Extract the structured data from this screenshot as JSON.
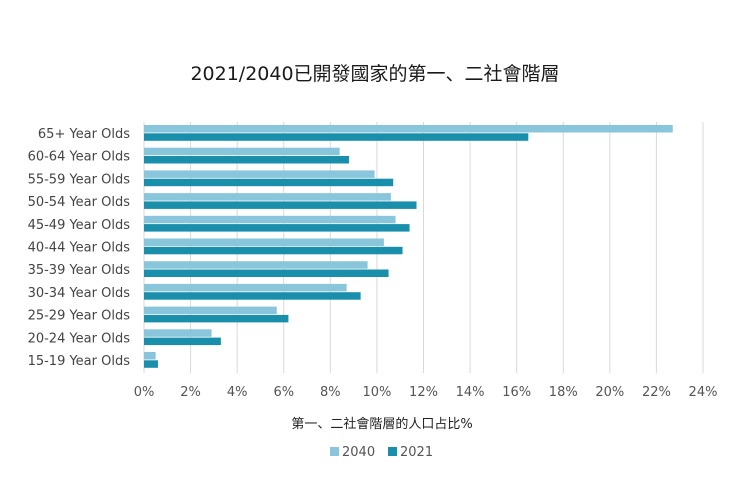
{
  "chart_data": {
    "type": "bar",
    "orientation": "horizontal",
    "title": "2021/2040已開發國家的第一、二社會階層",
    "xlabel": "第一、二社會階層的人口占比%",
    "ylabel": "",
    "categories": [
      "65+ Year Olds",
      "60-64 Year Olds",
      "55-59 Year Olds",
      "50-54 Year Olds",
      "45-49 Year Olds",
      "40-44 Year Olds",
      "35-39 Year Olds",
      "30-34 Year Olds",
      "25-29 Year Olds",
      "20-24 Year Olds",
      "15-19 Year Olds"
    ],
    "series": [
      {
        "name": "2040",
        "color": "#8ac6db",
        "values": [
          22.7,
          8.4,
          9.9,
          10.6,
          10.8,
          10.3,
          9.6,
          8.7,
          5.7,
          2.9,
          0.5
        ]
      },
      {
        "name": "2021",
        "color": "#1a8fac",
        "values": [
          16.5,
          8.8,
          10.7,
          11.7,
          11.4,
          11.1,
          10.5,
          9.3,
          6.2,
          3.3,
          0.6
        ]
      }
    ],
    "xlim": [
      0,
      24
    ],
    "x_ticks": [
      "0%",
      "2%",
      "4%",
      "6%",
      "8%",
      "10%",
      "12%",
      "14%",
      "16%",
      "18%",
      "20%",
      "22%",
      "24%"
    ],
    "x_tick_values": [
      0,
      2,
      4,
      6,
      8,
      10,
      12,
      14,
      16,
      18,
      20,
      22,
      24
    ],
    "grid": "vertical",
    "legend_position": "bottom"
  }
}
